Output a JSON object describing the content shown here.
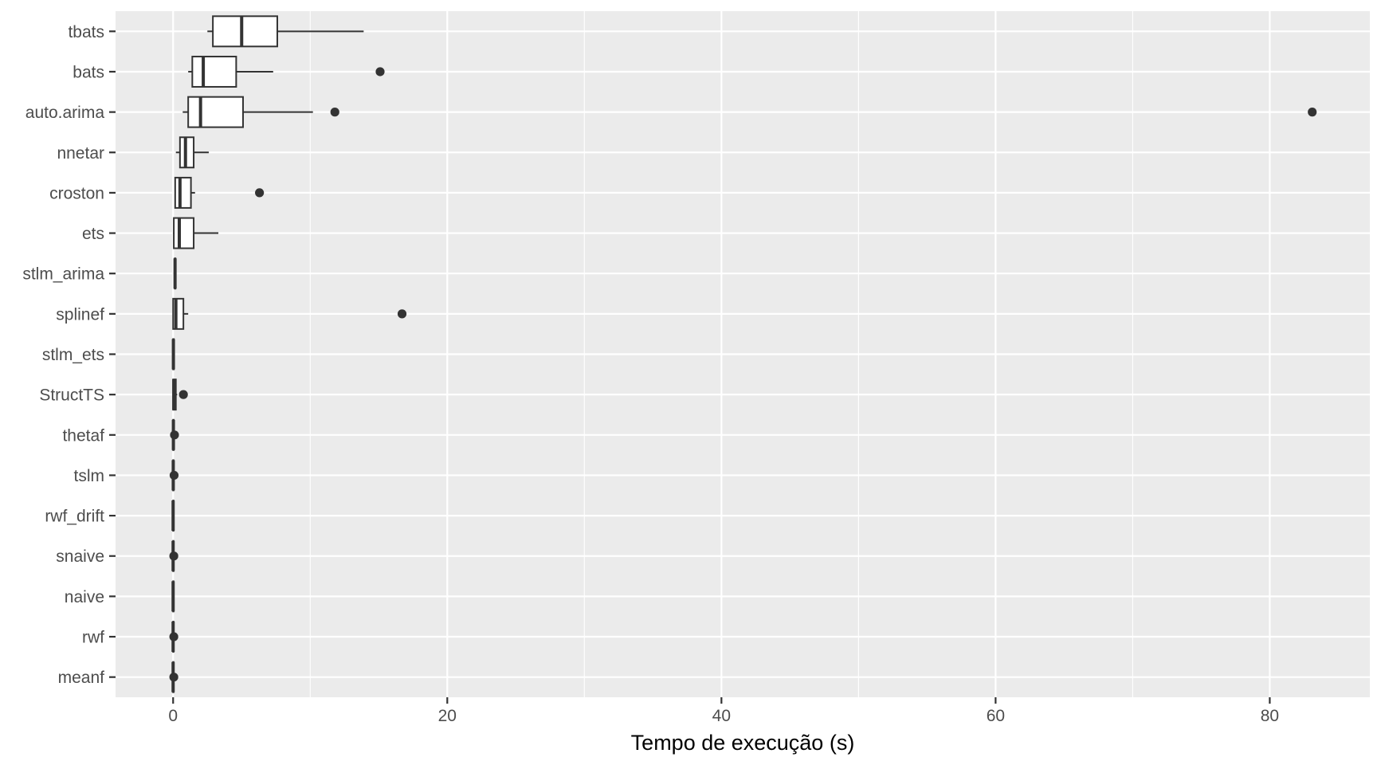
{
  "chart_data": {
    "type": "boxplot",
    "orientation": "horizontal",
    "title": "",
    "xlabel": "Tempo de execução (s)",
    "ylabel": "",
    "xlim": [
      -4.2,
      87.3
    ],
    "xticks": [
      0,
      20,
      40,
      60,
      80
    ],
    "xticks_minor": [
      10,
      30,
      50,
      70
    ],
    "grid": true,
    "legend": "none",
    "colors": {
      "panel": "#ebebeb",
      "grid": "#ffffff",
      "box_fill": "#ffffff",
      "stroke": "#333333",
      "outlier": "#333333",
      "tick_text": "#4d4d4d",
      "title_text": "#000000"
    },
    "categories": [
      "tbats",
      "bats",
      "auto.arima",
      "nnetar",
      "croston",
      "ets",
      "stlm_arima",
      "splinef",
      "stlm_ets",
      "StructTS",
      "thetaf",
      "tslm",
      "rwf_drift",
      "snaive",
      "naive",
      "rwf",
      "meanf"
    ],
    "boxes": [
      {
        "label": "tbats",
        "min": 2.5,
        "q1": 2.9,
        "median": 5.0,
        "q3": 7.6,
        "max": 13.9,
        "outliers": []
      },
      {
        "label": "bats",
        "min": 1.1,
        "q1": 1.4,
        "median": 2.2,
        "q3": 4.6,
        "max": 7.3,
        "outliers": [
          15.1
        ]
      },
      {
        "label": "auto.arima",
        "min": 0.7,
        "q1": 1.1,
        "median": 2.0,
        "q3": 5.1,
        "max": 10.2,
        "outliers": [
          11.8,
          83.1
        ]
      },
      {
        "label": "nnetar",
        "min": 0.2,
        "q1": 0.5,
        "median": 0.9,
        "q3": 1.5,
        "max": 2.6,
        "outliers": []
      },
      {
        "label": "croston",
        "min": 0.1,
        "q1": 0.15,
        "median": 0.5,
        "q3": 1.3,
        "max": 1.6,
        "outliers": [
          6.3
        ]
      },
      {
        "label": "ets",
        "min": 0.0,
        "q1": 0.05,
        "median": 0.45,
        "q3": 1.5,
        "max": 3.3,
        "outliers": []
      },
      {
        "label": "stlm_arima",
        "min": 0.1,
        "q1": 0.12,
        "median": 0.14,
        "q3": 0.17,
        "max": 0.2,
        "outliers": []
      },
      {
        "label": "splinef",
        "min": 0.0,
        "q1": 0.0,
        "median": 0.2,
        "q3": 0.75,
        "max": 1.1,
        "outliers": [
          16.7
        ]
      },
      {
        "label": "stlm_ets",
        "min": 0.0,
        "q1": 0.0,
        "median": 0.02,
        "q3": 0.05,
        "max": 0.1,
        "outliers": []
      },
      {
        "label": "StructTS",
        "min": 0.0,
        "q1": 0.0,
        "median": 0.05,
        "q3": 0.2,
        "max": 0.3,
        "outliers": [
          0.75
        ]
      },
      {
        "label": "thetaf",
        "min": 0.0,
        "q1": 0.0,
        "median": 0.02,
        "q3": 0.04,
        "max": 0.05,
        "outliers": [
          0.1
        ]
      },
      {
        "label": "tslm",
        "min": 0.0,
        "q1": 0.0,
        "median": 0.01,
        "q3": 0.02,
        "max": 0.03,
        "outliers": [
          0.07
        ]
      },
      {
        "label": "rwf_drift",
        "min": 0.0,
        "q1": 0.0,
        "median": 0.0,
        "q3": 0.01,
        "max": 0.01,
        "outliers": []
      },
      {
        "label": "snaive",
        "min": 0.0,
        "q1": 0.0,
        "median": 0.0,
        "q3": 0.01,
        "max": 0.02,
        "outliers": [
          0.05
        ]
      },
      {
        "label": "naive",
        "min": 0.0,
        "q1": 0.0,
        "median": 0.0,
        "q3": 0.01,
        "max": 0.01,
        "outliers": []
      },
      {
        "label": "rwf",
        "min": 0.0,
        "q1": 0.0,
        "median": 0.0,
        "q3": 0.01,
        "max": 0.02,
        "outliers": [
          0.05
        ]
      },
      {
        "label": "meanf",
        "min": 0.0,
        "q1": 0.0,
        "median": 0.0,
        "q3": 0.01,
        "max": 0.02,
        "outliers": [
          0.05
        ]
      }
    ]
  }
}
